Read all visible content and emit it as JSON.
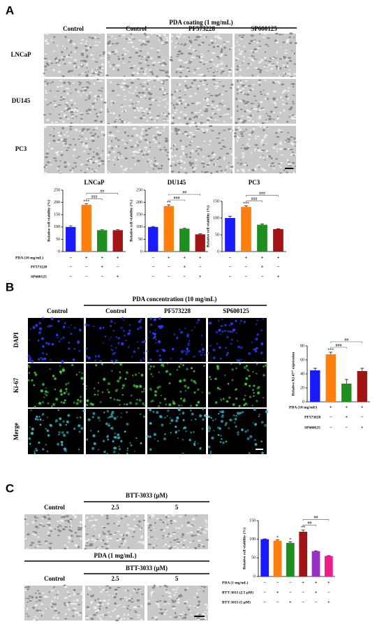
{
  "panel_a": {
    "label": "A",
    "group_title": "PDA coating (1 mg/mL)",
    "columns": [
      "Control",
      "Control",
      "PF573228",
      "SP600125"
    ],
    "rows": [
      "LNCaP",
      "DU145",
      "PC3"
    ]
  },
  "panel_b": {
    "label": "B",
    "group_title": "PDA concentration (10 mg/mL)",
    "columns": [
      "Control",
      "Control",
      "PF573228",
      "SP600125"
    ],
    "rows": [
      "DAPI",
      "Ki-67",
      "Merge"
    ]
  },
  "panel_c": {
    "label": "C",
    "top_group": "BTT-3033 (μM)",
    "top_columns": [
      "Control",
      "2.5",
      "5"
    ],
    "bottom_outer_group": "PDA (1 mg/mL)",
    "bottom_group": "BTT-3033 (μM)",
    "bottom_columns": [
      "Control",
      "2.5",
      "5"
    ]
  },
  "chart_data": [
    {
      "type": "bar",
      "title": "LNCaP",
      "ylabel": "Relative cell viability (%)",
      "values": [
        100,
        190,
        87,
        87
      ],
      "errors": [
        5,
        4,
        2,
        2
      ],
      "colors": [
        "#1a1aff",
        "#ff7f0e",
        "#1e8f1e",
        "#a31515"
      ],
      "ylim": [
        0,
        250
      ],
      "yticks": [
        0,
        50,
        100,
        150,
        200,
        250
      ],
      "stars": [
        null,
        "***",
        null,
        null
      ],
      "brackets": [
        "###",
        "##"
      ],
      "row_labels": [
        "PDA (10 mg/mL)",
        "PF573228",
        "SP600125"
      ],
      "signs": [
        [
          "−",
          "+",
          "+",
          "+"
        ],
        [
          "−",
          "−",
          "+",
          "−"
        ],
        [
          "−",
          "−",
          "−",
          "+"
        ]
      ]
    },
    {
      "type": "bar",
      "title": "DU145",
      "ylabel": "Relative cell viability (%)",
      "values": [
        100,
        185,
        93,
        70
      ],
      "errors": [
        2,
        5,
        2,
        2
      ],
      "colors": [
        "#1a1aff",
        "#ff7f0e",
        "#1e8f1e",
        "#a31515"
      ],
      "ylim": [
        0,
        250
      ],
      "yticks": [
        0,
        50,
        100,
        150,
        200,
        250
      ],
      "stars": [
        null,
        "**",
        null,
        null
      ],
      "brackets": [
        "###",
        "##"
      ],
      "signs": [
        [
          "−",
          "+",
          "+",
          "+"
        ],
        [
          "−",
          "−",
          "+",
          "−"
        ],
        [
          "−",
          "−",
          "−",
          "+"
        ]
      ]
    },
    {
      "type": "bar",
      "title": "PC3",
      "ylabel": "Relative cell viability (%)",
      "values": [
        100,
        133,
        80,
        67
      ],
      "errors": [
        5,
        3,
        2,
        1
      ],
      "colors": [
        "#1a1aff",
        "#ff7f0e",
        "#1e8f1e",
        "#a31515"
      ],
      "ylim": [
        0,
        150
      ],
      "yticks": [
        0,
        50,
        100,
        150
      ],
      "stars": [
        null,
        "***",
        null,
        null
      ],
      "brackets": [
        "###",
        "###"
      ],
      "signs": [
        [
          "−",
          "+",
          "+",
          "+"
        ],
        [
          "−",
          "−",
          "+",
          "−"
        ],
        [
          "−",
          "−",
          "−",
          "+"
        ]
      ]
    },
    {
      "type": "bar",
      "ylabel": "Relative Ki-67⁺ expression",
      "values": [
        45,
        68,
        26,
        44
      ],
      "errors": [
        3,
        3,
        6,
        4
      ],
      "colors": [
        "#1a1aff",
        "#ff7f0e",
        "#1e8f1e",
        "#a31515"
      ],
      "ylim": [
        0,
        80
      ],
      "yticks": [
        0,
        20,
        40,
        60,
        80
      ],
      "stars": [
        null,
        "***",
        null,
        null
      ],
      "brackets": [
        "###",
        "##"
      ],
      "row_labels": [
        "PDA (10 mg/mL)",
        "PF573228",
        "SP600125"
      ],
      "signs": [
        [
          "−",
          "+",
          "+",
          "+"
        ],
        [
          "−",
          "−",
          "+",
          "−"
        ],
        [
          "−",
          "−",
          "−",
          "+"
        ]
      ]
    },
    {
      "type": "bar",
      "ylabel": "Relative cell viability (%)",
      "values": [
        100,
        96,
        90,
        120,
        68,
        55
      ],
      "errors": [
        1,
        2,
        3,
        5,
        1,
        1
      ],
      "colors": [
        "#1a1aff",
        "#ff7f0e",
        "#1e8f1e",
        "#a31515",
        "#9b30c8",
        "#f01e8c"
      ],
      "ylim": [
        0,
        150
      ],
      "yticks": [
        0,
        50,
        100,
        150
      ],
      "stars": [
        null,
        "*",
        "*",
        "**",
        null,
        null
      ],
      "brackets": [
        "##",
        "##"
      ],
      "row_labels": [
        "PDA (1 mg/mL)",
        "BTT-3033 (2.5 μM)",
        "BTT-3033 (5 μM)"
      ],
      "signs": [
        [
          "−",
          "−",
          "−",
          "+",
          "+",
          "+"
        ],
        [
          "−",
          "+",
          "−",
          "−",
          "+",
          "−"
        ],
        [
          "−",
          "−",
          "+",
          "−",
          "−",
          "+"
        ]
      ]
    }
  ]
}
